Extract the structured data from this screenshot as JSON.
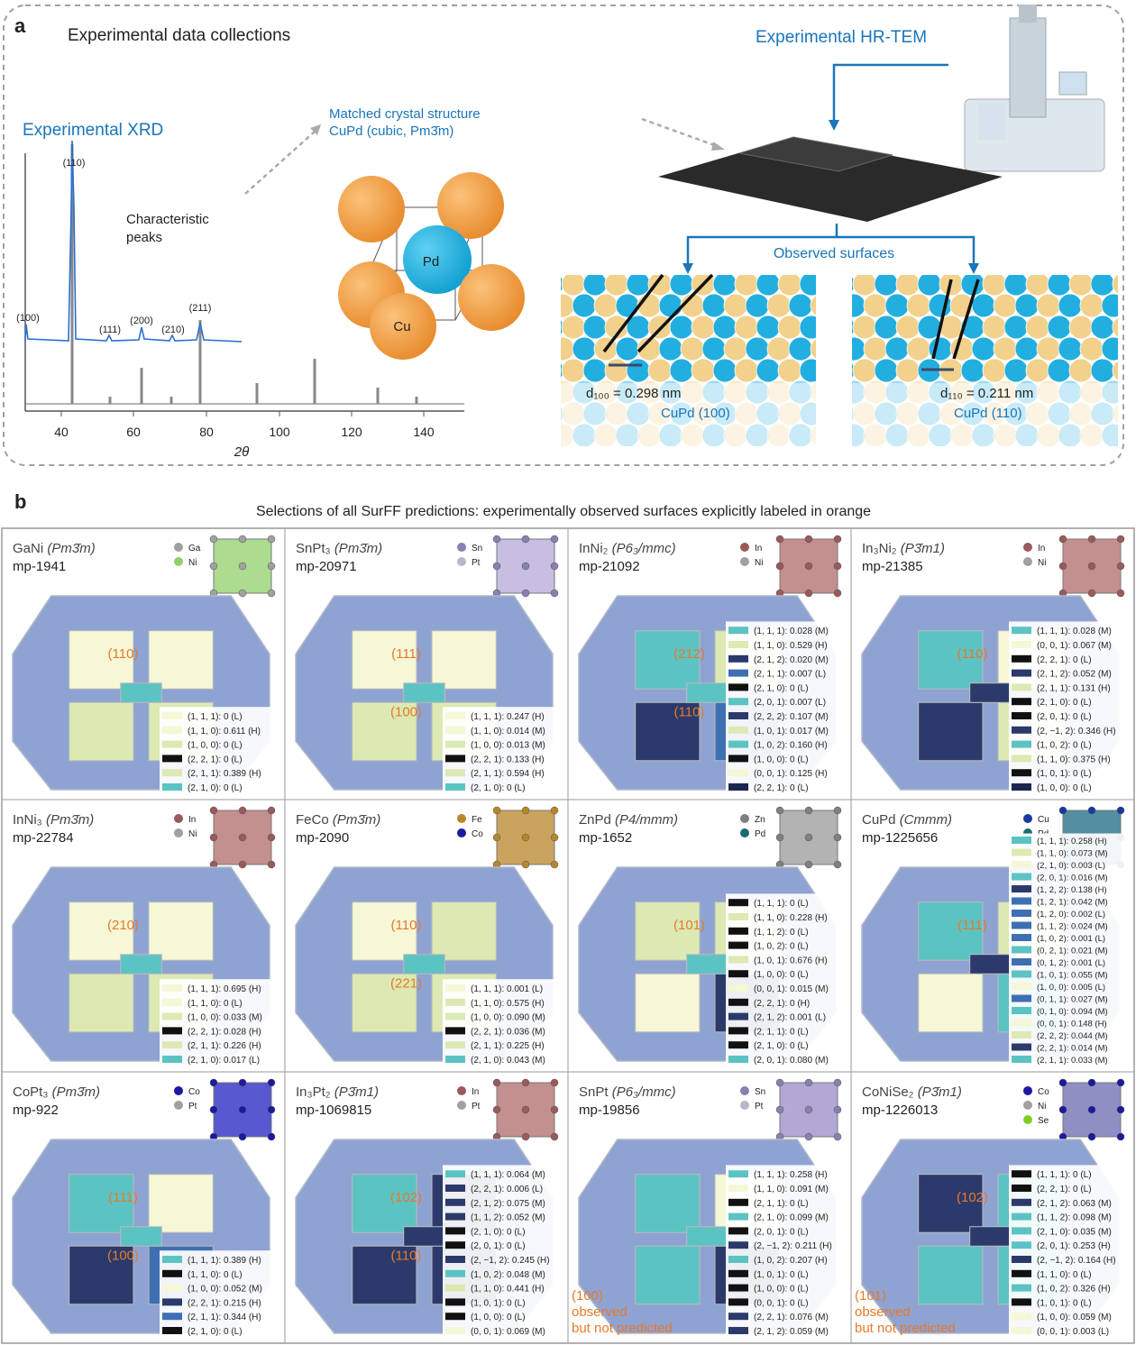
{
  "panel_a": {
    "label": "a",
    "title": "Experimental data collections",
    "xrd_title": "Experimental XRD",
    "peak_labels": [
      "(100)",
      "(110)",
      "(111)",
      "(200)",
      "(210)",
      "(211)"
    ],
    "annotation": [
      "Characteristic",
      "peaks"
    ],
    "x_ticks": [
      "40",
      "60",
      "80",
      "100",
      "120",
      "140"
    ],
    "x_label": "2θ",
    "matched": [
      "Matched crystal structure",
      "CuPd (cubic, Pm3̄m)"
    ],
    "atoms": [
      "Pd",
      "Cu"
    ],
    "hrtem_title": "Experimental HR-TEM",
    "observed": "Observed surfaces",
    "surfaces": [
      {
        "spacing": "d₁₀₀ = 0.298 nm",
        "name": "CuPd (100)"
      },
      {
        "spacing": "d₁₁₀ = 0.211 nm",
        "name": "CuPd (110)"
      }
    ]
  },
  "panel_b": {
    "label": "b",
    "title": "Selections of all SurFF predictions: experimentally observed surfaces explicitly labeled in orange",
    "cells": [
      {
        "formula": "GaNi",
        "space_group": "(Pm3̄m)",
        "id": "mp-1941",
        "icon_color": "#8fd06a",
        "elements": [
          {
            "name": "Ga",
            "color": "#a0a0a0"
          },
          {
            "name": "Ni",
            "color": "#8fd06a"
          }
        ],
        "facet_labels": [
          "(110)"
        ],
        "legend": [
          {
            "text": "(1, 1, 1): 0 (L)",
            "color": "#f5f7d6"
          },
          {
            "text": "(1, 1, 0): 0.611 (H)",
            "color": "#f5f7d6"
          },
          {
            "text": "(1, 0, 0): 0 (L)",
            "color": "#dce9b3"
          },
          {
            "text": "(2, 2, 1): 0 (L)",
            "color": "#111111"
          },
          {
            "text": "(2, 1, 1): 0.389 (H)",
            "color": "#dce9b3"
          },
          {
            "text": "(2, 1, 0): 0 (L)",
            "color": "#5cc3c3"
          }
        ]
      },
      {
        "formula": "SnPt₃",
        "space_group": "(Pm3̄m)",
        "id": "mp-20971",
        "icon_color": "#b4a8d8",
        "elements": [
          {
            "name": "Sn",
            "color": "#8a7fb0"
          },
          {
            "name": "Pt",
            "color": "#b8b8c8"
          }
        ],
        "facet_labels": [
          "(111)",
          "(100)"
        ],
        "legend": [
          {
            "text": "(1, 1, 1): 0.247 (H)",
            "color": "#f5f7d6"
          },
          {
            "text": "(1, 1, 0): 0.014 (M)",
            "color": "#f5f7d6"
          },
          {
            "text": "(1, 0, 0): 0.013 (M)",
            "color": "#dce9b3"
          },
          {
            "text": "(2, 2, 1): 0.133 (H)",
            "color": "#111111"
          },
          {
            "text": "(2, 1, 1): 0.594 (H)",
            "color": "#dce9b3"
          },
          {
            "text": "(2, 1, 0): 0 (L)",
            "color": "#5cc3c3"
          }
        ]
      },
      {
        "formula": "InNi₂",
        "space_group": "(P6₃/mmc)",
        "id": "mp-21092",
        "icon_color": "#b06a6a",
        "elements": [
          {
            "name": "In",
            "color": "#9a5a5a"
          },
          {
            "name": "Ni",
            "color": "#a0a0a0"
          }
        ],
        "facet_labels": [
          "(212)",
          "(110)"
        ],
        "legend": [
          {
            "text": "(1, 1, 1): 0.028 (M)",
            "color": "#5cc3c3"
          },
          {
            "text": "(1, 1, 0): 0.529 (H)",
            "color": "#dce9b3"
          },
          {
            "text": "(2, 1, 2): 0.020 (M)",
            "color": "#2b3a6b"
          },
          {
            "text": "(2, 1, 1): 0.007 (L)",
            "color": "#3f6fb3"
          },
          {
            "text": "(2, 1, 0): 0 (L)",
            "color": "#111111"
          },
          {
            "text": "(2, 0, 1): 0.007 (L)",
            "color": "#5cc3c3"
          },
          {
            "text": "(2, 2, 2): 0.107 (M)",
            "color": "#2b3a6b"
          },
          {
            "text": "(1, 0, 1): 0.017 (M)",
            "color": "#dce9b3"
          },
          {
            "text": "(1, 0, 2): 0.160 (H)",
            "color": "#5cc3c3"
          },
          {
            "text": "(1, 0, 0): 0 (L)",
            "color": "#111111"
          },
          {
            "text": "(0, 0, 1): 0.125 (H)",
            "color": "#f5f7d6"
          },
          {
            "text": "(2, 2, 1): 0 (L)",
            "color": "#1c2750"
          }
        ]
      },
      {
        "formula": "In₃Ni₂",
        "space_group": "(P3̄m1)",
        "id": "mp-21385",
        "icon_color": "#b06a6a",
        "elements": [
          {
            "name": "In",
            "color": "#9a5a5a"
          },
          {
            "name": "Ni",
            "color": "#a0a0a0"
          }
        ],
        "facet_labels": [
          "(110)"
        ],
        "legend": [
          {
            "text": "(1, 1, 1): 0.028 (M)",
            "color": "#5cc3c3"
          },
          {
            "text": "(0, 0, 1): 0.067 (M)",
            "color": "#f5f7d6"
          },
          {
            "text": "(2, 2, 1): 0 (L)",
            "color": "#111111"
          },
          {
            "text": "(2, 1, 2): 0.052 (M)",
            "color": "#2b3a6b"
          },
          {
            "text": "(2, 1, 1): 0.131 (H)",
            "color": "#dce9b3"
          },
          {
            "text": "(2, 1, 0): 0 (L)",
            "color": "#111111"
          },
          {
            "text": "(2, 0, 1): 0 (L)",
            "color": "#111111"
          },
          {
            "text": "(2, −1, 2): 0.346 (H)",
            "color": "#2b3a6b"
          },
          {
            "text": "(1, 0, 2): 0 (L)",
            "color": "#5cc3c3"
          },
          {
            "text": "(1, 1, 0): 0.375 (H)",
            "color": "#dce9b3"
          },
          {
            "text": "(1, 0, 1): 0 (L)",
            "color": "#111111"
          },
          {
            "text": "(1, 0, 0): 0 (L)",
            "color": "#1c2750"
          }
        ]
      },
      {
        "formula": "InNi₃",
        "space_group": "(Pm3̄m)",
        "id": "mp-22784",
        "icon_color": "#b06a6a",
        "elements": [
          {
            "name": "In",
            "color": "#9a5a5a"
          },
          {
            "name": "Ni",
            "color": "#a0a0a0"
          }
        ],
        "facet_labels": [
          "(210)"
        ],
        "legend": [
          {
            "text": "(1, 1, 1): 0.695 (H)",
            "color": "#f5f7d6"
          },
          {
            "text": "(1, 1, 0): 0 (L)",
            "color": "#f5f7d6"
          },
          {
            "text": "(1, 0, 0): 0.033 (M)",
            "color": "#dce9b3"
          },
          {
            "text": "(2, 2, 1): 0.028 (H)",
            "color": "#111111"
          },
          {
            "text": "(2, 1, 1): 0.226 (H)",
            "color": "#dce9b3"
          },
          {
            "text": "(2, 1, 0): 0.017 (L)",
            "color": "#5cc3c3"
          }
        ]
      },
      {
        "formula": "FeCo",
        "space_group": "(Pm3̄m)",
        "id": "mp-2090",
        "icon_color": "#b8862a",
        "elements": [
          {
            "name": "Fe",
            "color": "#b8862a"
          },
          {
            "name": "Co",
            "color": "#1a1aa0"
          }
        ],
        "facet_labels": [
          "(110)",
          "(221)"
        ],
        "legend": [
          {
            "text": "(1, 1, 1): 0.001 (L)",
            "color": "#f5f7d6"
          },
          {
            "text": "(1, 1, 0): 0.575 (H)",
            "color": "#dce9b3"
          },
          {
            "text": "(1, 0, 0): 0.090 (M)",
            "color": "#dce9b3"
          },
          {
            "text": "(2, 2, 1): 0.036 (M)",
            "color": "#111111"
          },
          {
            "text": "(2, 1, 1): 0.225 (H)",
            "color": "#dce9b3"
          },
          {
            "text": "(2, 1, 0): 0.043 (M)",
            "color": "#5cc3c3"
          }
        ]
      },
      {
        "formula": "ZnPd",
        "space_group": "(P4/mmm)",
        "id": "mp-1652",
        "icon_color": "#9a9a9a",
        "elements": [
          {
            "name": "Zn",
            "color": "#808080"
          },
          {
            "name": "Pd",
            "color": "#1a6a70"
          }
        ],
        "facet_labels": [
          "(101)"
        ],
        "legend": [
          {
            "text": "(1, 1, 1): 0 (L)",
            "color": "#111111"
          },
          {
            "text": "(1, 1, 0): 0.228 (H)",
            "color": "#dce9b3"
          },
          {
            "text": "(1, 1, 2): 0 (L)",
            "color": "#111111"
          },
          {
            "text": "(1, 0, 2): 0 (L)",
            "color": "#111111"
          },
          {
            "text": "(1, 0, 1): 0.676 (H)",
            "color": "#dce9b3"
          },
          {
            "text": "(1, 0, 0): 0 (L)",
            "color": "#111111"
          },
          {
            "text": "(0, 0, 1): 0.015 (M)",
            "color": "#f5f7d6"
          },
          {
            "text": "(2, 2, 1): 0 (H)",
            "color": "#111111"
          },
          {
            "text": "(2, 1, 2): 0.001 (L)",
            "color": "#2b3a6b"
          },
          {
            "text": "(2, 1, 1): 0 (L)",
            "color": "#111111"
          },
          {
            "text": "(2, 1, 0): 0 (L)",
            "color": "#111111"
          },
          {
            "text": "(2, 0, 1): 0.080 (M)",
            "color": "#5cc3c3"
          }
        ]
      },
      {
        "formula": "CuPd",
        "space_group": "(Cmmm)",
        "id": "mp-1225656",
        "icon_color": "#1a6a80",
        "elements": [
          {
            "name": "Cu",
            "color": "#1a3aa0"
          },
          {
            "name": "Pd",
            "color": "#1a6a70"
          }
        ],
        "facet_labels": [
          "(111)"
        ],
        "legend": [
          {
            "text": "(1, 1, 1): 0.258 (H)",
            "color": "#5cc3c3"
          },
          {
            "text": "(1, 1, 0): 0.073 (M)",
            "color": "#dce9b3"
          },
          {
            "text": "(2, 1, 0): 0.003 (L)",
            "color": "#f5f7d6"
          },
          {
            "text": "(2, 0, 1): 0.016 (M)",
            "color": "#5cc3c3"
          },
          {
            "text": "(1, 2, 2): 0.138 (H)",
            "color": "#2b3a6b"
          },
          {
            "text": "(1, 2, 1): 0.042 (M)",
            "color": "#3f6fb3"
          },
          {
            "text": "(1, 2, 0): 0.002 (L)",
            "color": "#3f6fb3"
          },
          {
            "text": "(1, 1, 2): 0.024 (M)",
            "color": "#3f6fb3"
          },
          {
            "text": "(1, 0, 2): 0.001 (L)",
            "color": "#3f6fb3"
          },
          {
            "text": "(0, 2, 1): 0.021 (M)",
            "color": "#5cc3c3"
          },
          {
            "text": "(0, 1, 2): 0.001 (L)",
            "color": "#3f6fb3"
          },
          {
            "text": "(1, 0, 1): 0.055 (M)",
            "color": "#5cc3c3"
          },
          {
            "text": "(1, 0, 0): 0.005 (L)",
            "color": "#f5f7d6"
          },
          {
            "text": "(0, 1, 1): 0.027 (M)",
            "color": "#3f6fb3"
          },
          {
            "text": "(0, 1, 0): 0.094 (M)",
            "color": "#5cc3c3"
          },
          {
            "text": "(0, 0, 1): 0.148 (H)",
            "color": "#f5f7d6"
          },
          {
            "text": "(2, 2, 2): 0.044 (M)",
            "color": "#dce9b3"
          },
          {
            "text": "(2, 2, 1): 0.014 (M)",
            "color": "#2b3a6b"
          },
          {
            "text": "(2, 1, 1): 0.033 (M)",
            "color": "#5cc3c3"
          }
        ]
      },
      {
        "formula": "CoPt₃",
        "space_group": "(Pm3̄m)",
        "id": "mp-922",
        "icon_color": "#2020c0",
        "elements": [
          {
            "name": "Co",
            "color": "#1a1aa0"
          },
          {
            "name": "Pt",
            "color": "#a0a0a0"
          }
        ],
        "facet_labels": [
          "(111)",
          "(100)"
        ],
        "legend": [
          {
            "text": "(1, 1, 1): 0.389 (H)",
            "color": "#5cc3c3"
          },
          {
            "text": "(1, 1, 0): 0 (L)",
            "color": "#111111"
          },
          {
            "text": "(1, 0, 0): 0.052 (M)",
            "color": "#f5f7d6"
          },
          {
            "text": "(2, 2, 1): 0.215 (H)",
            "color": "#2b3a6b"
          },
          {
            "text": "(2, 1, 1): 0.344 (H)",
            "color": "#3f6fb3"
          },
          {
            "text": "(2, 1, 0): 0 (L)",
            "color": "#111111"
          }
        ]
      },
      {
        "formula": "In₃Pt₂",
        "space_group": "(P3̄m1)",
        "id": "mp-1069815",
        "icon_color": "#b06a6a",
        "elements": [
          {
            "name": "In",
            "color": "#9a5a5a"
          },
          {
            "name": "Pt",
            "color": "#a0a0a0"
          }
        ],
        "facet_labels": [
          "(102)",
          "(110)"
        ],
        "legend": [
          {
            "text": "(1, 1, 1): 0.064 (M)",
            "color": "#5cc3c3"
          },
          {
            "text": "(2, 2, 1): 0.006 (L)",
            "color": "#2b3a6b"
          },
          {
            "text": "(2, 1, 2): 0.075 (M)",
            "color": "#2b3a6b"
          },
          {
            "text": "(1, 1, 2): 0.052 (M)",
            "color": "#2b3a6b"
          },
          {
            "text": "(2, 1, 0): 0 (L)",
            "color": "#111111"
          },
          {
            "text": "(2, 0, 1): 0 (L)",
            "color": "#111111"
          },
          {
            "text": "(2, −1, 2): 0.245 (H)",
            "color": "#2b3a6b"
          },
          {
            "text": "(1, 0, 2): 0.048 (M)",
            "color": "#5cc3c3"
          },
          {
            "text": "(1, 1, 0): 0.441 (H)",
            "color": "#dce9b3"
          },
          {
            "text": "(1, 0, 1): 0 (L)",
            "color": "#111111"
          },
          {
            "text": "(1, 0, 0): 0 (L)",
            "color": "#111111"
          },
          {
            "text": "(0, 0, 1): 0.069 (M)",
            "color": "#f5f7d6"
          }
        ]
      },
      {
        "formula": "SnPt",
        "space_group": "(P6₃/mmc)",
        "id": "mp-19856",
        "icon_color": "#9a8ac8",
        "elements": [
          {
            "name": "Sn",
            "color": "#8a7fb0"
          },
          {
            "name": "Pt",
            "color": "#b8b8c8"
          }
        ],
        "facet_labels": [],
        "note": [
          "(100)",
          "observed",
          "but not predicted"
        ],
        "legend": [
          {
            "text": "(1, 1, 1): 0.258 (H)",
            "color": "#5cc3c3"
          },
          {
            "text": "(1, 1, 0): 0.091 (M)",
            "color": "#f5f7d6"
          },
          {
            "text": "(2, 1, 1): 0 (L)",
            "color": "#111111"
          },
          {
            "text": "(2, 1, 0): 0.099 (M)",
            "color": "#5cc3c3"
          },
          {
            "text": "(2, 0, 1): 0 (L)",
            "color": "#111111"
          },
          {
            "text": "(2, −1, 2): 0.211 (H)",
            "color": "#2b3a6b"
          },
          {
            "text": "(1, 0, 2): 0.207 (H)",
            "color": "#5cc3c3"
          },
          {
            "text": "(1, 0, 1): 0 (L)",
            "color": "#111111"
          },
          {
            "text": "(1, 0, 0): 0 (L)",
            "color": "#111111"
          },
          {
            "text": "(0, 0, 1): 0 (L)",
            "color": "#111111"
          },
          {
            "text": "(2, 2, 1): 0.076 (M)",
            "color": "#2b3a6b"
          },
          {
            "text": "(2, 1, 2): 0.059 (M)",
            "color": "#2b3a6b"
          }
        ]
      },
      {
        "formula": "CoNiSe₂",
        "space_group": "(P3̄m1)",
        "id": "mp-1226013",
        "icon_color": "#6a6ab0",
        "elements": [
          {
            "name": "Co",
            "color": "#1a1aa0"
          },
          {
            "name": "Ni",
            "color": "#a0a0a0"
          },
          {
            "name": "Se",
            "color": "#7ad020"
          }
        ],
        "facet_labels": [
          "(102)"
        ],
        "note": [
          "(101)",
          "observed",
          "but not predicted"
        ],
        "legend": [
          {
            "text": "(1, 1, 1): 0 (L)",
            "color": "#111111"
          },
          {
            "text": "(2, 2, 1): 0 (L)",
            "color": "#111111"
          },
          {
            "text": "(2, 1, 2): 0.063 (M)",
            "color": "#2b3a6b"
          },
          {
            "text": "(1, 1, 2): 0.098 (M)",
            "color": "#5cc3c3"
          },
          {
            "text": "(2, 1, 0): 0.035 (M)",
            "color": "#5cc3c3"
          },
          {
            "text": "(2, 0, 1): 0.253 (H)",
            "color": "#5cc3c3"
          },
          {
            "text": "(2, −1, 2): 0.164 (H)",
            "color": "#2b3a6b"
          },
          {
            "text": "(1, 1, 0): 0 (L)",
            "color": "#111111"
          },
          {
            "text": "(1, 0, 2): 0.326 (H)",
            "color": "#5cc3c3"
          },
          {
            "text": "(1, 0, 1): 0 (L)",
            "color": "#111111"
          },
          {
            "text": "(1, 0, 0): 0.059 (M)",
            "color": "#f5f7d6"
          },
          {
            "text": "(0, 0, 1): 0.003 (L)",
            "color": "#f5f7d6"
          }
        ]
      }
    ]
  }
}
